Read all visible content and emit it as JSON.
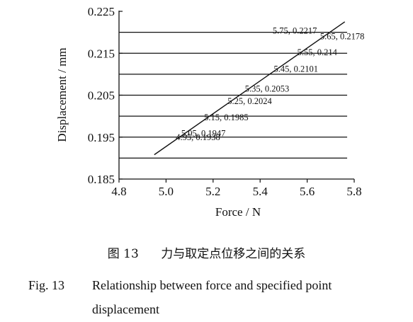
{
  "chart_data": {
    "type": "line",
    "xlabel": "Force / N",
    "ylabel": "Displacement / mm",
    "xlim": [
      4.8,
      5.8
    ],
    "ylim": [
      0.185,
      0.225
    ],
    "xticks": [
      "4.8",
      "5.0",
      "5.2",
      "5.4",
      "5.6",
      "5.8"
    ],
    "yticks": [
      "0.185",
      "0.195",
      "0.205",
      "0.215",
      "0.225"
    ],
    "horizontal_gridlines": [
      0.19,
      0.195,
      0.2,
      0.205,
      0.21,
      0.215,
      0.22
    ],
    "grid_extends_to_x": 5.77,
    "series": [
      {
        "x": [
          4.95,
          5.05,
          5.15,
          5.25,
          5.35,
          5.45,
          5.55,
          5.65,
          5.75
        ],
        "y": [
          0.1938,
          0.1947,
          0.1985,
          0.2024,
          0.2053,
          0.2101,
          0.214,
          0.2178,
          0.2217
        ]
      }
    ],
    "line_endpoints": {
      "x": [
        4.95,
        5.76
      ],
      "y": [
        0.1908,
        0.2225
      ]
    },
    "data_labels": [
      {
        "text": "4.95, 0.1938",
        "x": 4.95,
        "y": 0.1938
      },
      {
        "text": "5.05, 0.1947",
        "x": 5.05,
        "y": 0.1947
      },
      {
        "text": "5.15, 0.1985",
        "x": 5.15,
        "y": 0.1985
      },
      {
        "text": "5.25, 0.2024",
        "x": 5.25,
        "y": 0.2024
      },
      {
        "text": "5.35, 0.2053",
        "x": 5.35,
        "y": 0.2053
      },
      {
        "text": "5.45, 0.2101",
        "x": 5.45,
        "y": 0.2101
      },
      {
        "text": "5.55, 0.214",
        "x": 5.55,
        "y": 0.214
      },
      {
        "text": "5.65, 0.2178",
        "x": 5.65,
        "y": 0.2178
      },
      {
        "text": "5.75, 0.2217",
        "x": 5.75,
        "y": 0.2217
      }
    ]
  },
  "caption": {
    "cn_number": "图 13",
    "cn_text": "力与取定点位移之间的关系",
    "en_number": "Fig. 13",
    "en_text_line1": "Relationship between force and specified point",
    "en_text_line2": "displacement"
  }
}
